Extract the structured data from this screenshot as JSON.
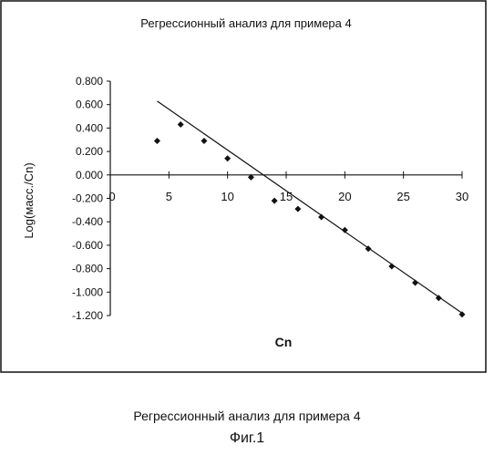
{
  "chart_data": {
    "type": "scatter",
    "title": "Регрессионный анализ для примера 4",
    "xlabel": "Cn",
    "ylabel": "Log(масс./Cn)",
    "xlim": [
      0,
      30
    ],
    "ylim": [
      -1.2,
      0.8
    ],
    "x_ticks": [
      "0",
      "5",
      "10",
      "15",
      "20",
      "25",
      "30"
    ],
    "y_ticks": [
      "0.800",
      "0.600",
      "0.400",
      "0.200",
      "0.000",
      "-0.200",
      "-0.400",
      "-0.600",
      "-0.800",
      "-1.000",
      "-1.200"
    ],
    "grid": false,
    "series": [
      {
        "points": [
          {
            "x": 4,
            "y": 0.29
          },
          {
            "x": 6,
            "y": 0.43
          },
          {
            "x": 8,
            "y": 0.29
          },
          {
            "x": 10,
            "y": 0.14
          },
          {
            "x": 12,
            "y": -0.02
          },
          {
            "x": 14,
            "y": -0.22
          },
          {
            "x": 16,
            "y": -0.29
          },
          {
            "x": 18,
            "y": -0.36
          },
          {
            "x": 20,
            "y": -0.47
          },
          {
            "x": 22,
            "y": -0.63
          },
          {
            "x": 24,
            "y": -0.78
          },
          {
            "x": 26,
            "y": -0.92
          },
          {
            "x": 28,
            "y": -1.05
          },
          {
            "x": 30,
            "y": -1.19
          }
        ]
      }
    ],
    "trendline": {
      "x": [
        4,
        30
      ],
      "y": [
        0.63,
        -1.18
      ]
    }
  },
  "caption": {
    "title": "Регрессионный анализ для примера 4",
    "figure_label": "Фиг.1"
  }
}
